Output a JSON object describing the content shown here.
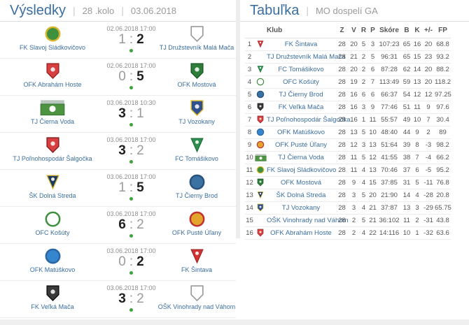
{
  "ui": {
    "separator": "|",
    "score_separator": ":"
  },
  "colors": {
    "accent_blue": "#3b6e9e",
    "link_blue": "#3b6e9e",
    "muted_gray": "#9a9a9a",
    "table_text": "#555555",
    "played_dot_green": "#3fa33f",
    "panel_gap": "#ededed",
    "row_border": "#ececec"
  },
  "logos": {
    "sladkovicovo": {
      "shape": "circle",
      "color": "#3e8f3e",
      "border": "#d7b52c"
    },
    "mala_maca": {
      "shape": "shield-outline",
      "color": "#ffffff",
      "border": "#9a9a9a"
    },
    "abraham_hoste": {
      "shape": "shield",
      "color": "#d64040",
      "border": "#a22525"
    },
    "mostova": {
      "shape": "shield",
      "color": "#2f7d3a",
      "border": "#1e5c28"
    },
    "cierna_voda": {
      "shape": "photo",
      "color": "#4e9440",
      "border": "#2e6e2e"
    },
    "vozokany": {
      "shape": "shield",
      "color": "#2f4f8f",
      "border": "#d7b52c"
    },
    "salgocka": {
      "shape": "shield",
      "color": "#d64040",
      "border": "#8a1f1f"
    },
    "tomasikovo": {
      "shape": "pennant",
      "color": "#2f8f4f",
      "border": "#1f6e3a"
    },
    "dolna_streda": {
      "shape": "pennant",
      "color": "#1e3a5f",
      "border": "#d7b52c"
    },
    "cierny_brod": {
      "shape": "circle",
      "color": "#3a72a4",
      "border": "#27537c"
    },
    "kosuty": {
      "shape": "circle",
      "color": "#ffffff",
      "border": "#3e8f3e"
    },
    "puste_ulany": {
      "shape": "circle",
      "color": "#e2a42a",
      "border": "#c13030"
    },
    "matuskovo": {
      "shape": "circle",
      "color": "#3585cf",
      "border": "#2a67a2"
    },
    "sintava": {
      "shape": "pennant",
      "color": "#d03434",
      "border": "#a02626"
    },
    "velka_maca": {
      "shape": "shield",
      "color": "#3a3a3a",
      "border": "#111111"
    },
    "vinohrady": {
      "shape": "shield-outline",
      "color": "#ffffff",
      "border": "#9a9a9a"
    }
  },
  "results_panel": {
    "title": "Výsledky",
    "round": "28 .kolo",
    "date": "03.06.2018",
    "matches": [
      {
        "datetime": "02.06.2018 17:00",
        "home": "FK Slavoj Sládkovičovo",
        "away": "TJ Družstevník Malá Mača",
        "home_score": "1",
        "away_score": "2",
        "winner": "away",
        "home_logo": "sladkovicovo",
        "away_logo": "mala_maca"
      },
      {
        "datetime": "02.06.2018 17:00",
        "home": "OFK Abrahám Hoste",
        "away": "OFK Mostová",
        "home_score": "0",
        "away_score": "5",
        "winner": "away",
        "home_logo": "abraham_hoste",
        "away_logo": "mostova"
      },
      {
        "datetime": "03.06.2018 10:30",
        "home": "TJ Čierna Voda",
        "away": "TJ Vozokany",
        "home_score": "3",
        "away_score": "1",
        "winner": "home",
        "home_logo": "cierna_voda",
        "away_logo": "vozokany"
      },
      {
        "datetime": "03.06.2018 17:00",
        "home": "TJ Poľnohospodár Šalgočka",
        "away": "FC Tomášikovo",
        "home_score": "3",
        "away_score": "2",
        "winner": "home",
        "home_logo": "salgocka",
        "away_logo": "tomasikovo"
      },
      {
        "datetime": "03.06.2018 17:00",
        "home": "ŠK Dolná Streda",
        "away": "TJ Čierny Brod",
        "home_score": "1",
        "away_score": "5",
        "winner": "away",
        "home_logo": "dolna_streda",
        "away_logo": "cierny_brod"
      },
      {
        "datetime": "03.06.2018 17:00",
        "home": "OFC Košúty",
        "away": "OFK Pusté Úľany",
        "home_score": "6",
        "away_score": "2",
        "winner": "home",
        "home_logo": "kosuty",
        "away_logo": "puste_ulany"
      },
      {
        "datetime": "03.06.2018 17:00",
        "home": "OFK Matúškovo",
        "away": "FK Šintava",
        "home_score": "0",
        "away_score": "2",
        "winner": "away",
        "home_logo": "matuskovo",
        "away_logo": "sintava"
      },
      {
        "datetime": "03.06.2018 17:00",
        "home": "FK Veľká Mača",
        "away": "OŠK Vinohrady nad Váhom",
        "home_score": "3",
        "away_score": "2",
        "winner": "home",
        "home_logo": "velka_maca",
        "away_logo": "vinohrady"
      }
    ]
  },
  "table_panel": {
    "title": "Tabuľka",
    "league": "MO dospelí GA",
    "columns": [
      "Klub",
      "Z",
      "V",
      "R",
      "P",
      "Skóre",
      "B",
      "K",
      "+/-",
      "FP"
    ],
    "rows": [
      {
        "pos": "1",
        "club": "FK Šintava",
        "logo": "sintava",
        "z": "28",
        "v": "20",
        "r": "5",
        "p": "3",
        "skore": "107:23",
        "b": "65",
        "k": "16",
        "pm": "20",
        "fp": "68.8"
      },
      {
        "pos": "2",
        "club": "TJ Družstevník Malá Mača",
        "logo": null,
        "z": "28",
        "v": "21",
        "r": "2",
        "p": "5",
        "skore": "96:31",
        "b": "65",
        "k": "15",
        "pm": "23",
        "fp": "93.2"
      },
      {
        "pos": "3",
        "club": "FC Tomášikovo",
        "logo": "tomasikovo",
        "z": "28",
        "v": "20",
        "r": "2",
        "p": "6",
        "skore": "87:28",
        "b": "62",
        "k": "14",
        "pm": "20",
        "fp": "88.2"
      },
      {
        "pos": "4",
        "club": "OFC Košúty",
        "logo": "kosuty",
        "z": "28",
        "v": "19",
        "r": "2",
        "p": "7",
        "skore": "113:49",
        "b": "59",
        "k": "13",
        "pm": "20",
        "fp": "118.2"
      },
      {
        "pos": "5",
        "club": "TJ Čierny Brod",
        "logo": "cierny_brod",
        "z": "28",
        "v": "16",
        "r": "6",
        "p": "6",
        "skore": "66:37",
        "b": "54",
        "k": "12",
        "pm": "12",
        "fp": "97.25"
      },
      {
        "pos": "6",
        "club": "FK Veľká Mača",
        "logo": "velka_maca",
        "z": "28",
        "v": "16",
        "r": "3",
        "p": "9",
        "skore": "77:46",
        "b": "51",
        "k": "11",
        "pm": "9",
        "fp": "97.6"
      },
      {
        "pos": "7",
        "club": "TJ Poľnohospodár Šalgočka",
        "logo": "salgocka",
        "z": "28",
        "v": "16",
        "r": "1",
        "p": "11",
        "skore": "55:57",
        "b": "49",
        "k": "10",
        "pm": "7",
        "fp": "30.4"
      },
      {
        "pos": "8",
        "club": "OFK Matúškovo",
        "logo": "matuskovo",
        "z": "28",
        "v": "13",
        "r": "5",
        "p": "10",
        "skore": "48:40",
        "b": "44",
        "k": "9",
        "pm": "2",
        "fp": "89"
      },
      {
        "pos": "9",
        "club": "OFK Pusté Úľany",
        "logo": "puste_ulany",
        "z": "28",
        "v": "12",
        "r": "3",
        "p": "13",
        "skore": "51:64",
        "b": "39",
        "k": "8",
        "pm": "-3",
        "fp": "98.2"
      },
      {
        "pos": "10",
        "club": "TJ Čierna Voda",
        "logo": "cierna_voda",
        "z": "28",
        "v": "11",
        "r": "5",
        "p": "12",
        "skore": "41:55",
        "b": "38",
        "k": "7",
        "pm": "-4",
        "fp": "66.2"
      },
      {
        "pos": "11",
        "club": "FK Slavoj Sládkovičovo",
        "logo": "sladkovicovo",
        "z": "28",
        "v": "11",
        "r": "4",
        "p": "13",
        "skore": "70:46",
        "b": "37",
        "k": "6",
        "pm": "-5",
        "fp": "95.2"
      },
      {
        "pos": "12",
        "club": "OFK Mostová",
        "logo": "mostova",
        "z": "28",
        "v": "9",
        "r": "4",
        "p": "15",
        "skore": "37:85",
        "b": "31",
        "k": "5",
        "pm": "-11",
        "fp": "76.8"
      },
      {
        "pos": "13",
        "club": "ŠK Dolná Streda",
        "logo": "dolna_streda",
        "z": "28",
        "v": "3",
        "r": "5",
        "p": "20",
        "skore": "21:90",
        "b": "14",
        "k": "4",
        "pm": "-28",
        "fp": "20.8"
      },
      {
        "pos": "14",
        "club": "TJ Vozokany",
        "logo": "vozokany",
        "z": "28",
        "v": "3",
        "r": "4",
        "p": "21",
        "skore": "37:87",
        "b": "13",
        "k": "3",
        "pm": "-29",
        "fp": "65.75"
      },
      {
        "pos": "15",
        "club": "OŠK Vinohrady nad Váhom",
        "logo": null,
        "z": "28",
        "v": "2",
        "r": "5",
        "p": "21",
        "skore": "36:102",
        "b": "11",
        "k": "2",
        "pm": "-31",
        "fp": "43.8"
      },
      {
        "pos": "16",
        "club": "OFK Abrahám Hoste",
        "logo": "abraham_hoste",
        "z": "28",
        "v": "2",
        "r": "4",
        "p": "22",
        "skore": "14:116",
        "b": "10",
        "k": "1",
        "pm": "-32",
        "fp": "63.6"
      }
    ]
  }
}
